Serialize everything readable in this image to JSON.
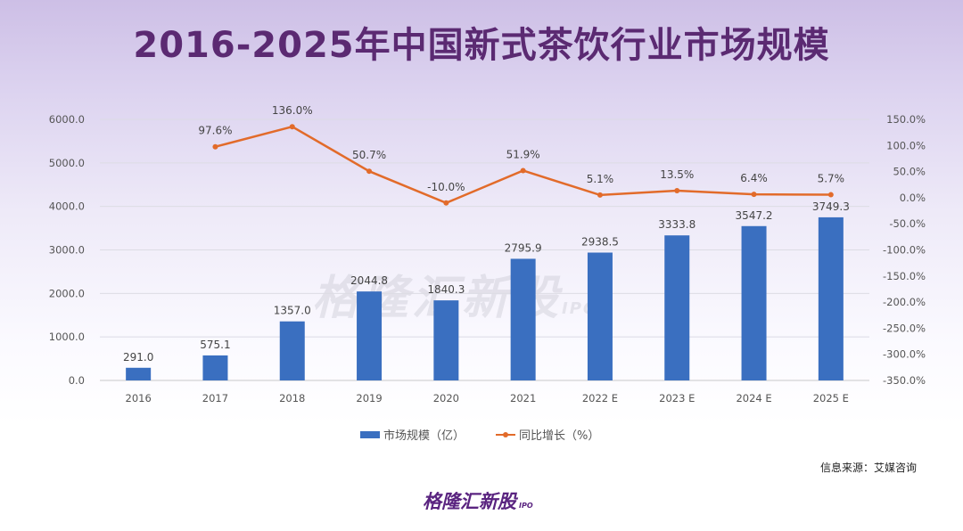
{
  "title": "2016-2025年中国新式茶饮行业市场规模",
  "source": "信息来源：艾媒咨询",
  "logo": {
    "text": "格隆汇新股",
    "sub": "IPO"
  },
  "watermark": {
    "text": "格隆汇新股",
    "sub": "IPO"
  },
  "colors": {
    "bar": "#3a6fc0",
    "line": "#e26b2a",
    "title": "#5b2a72"
  },
  "chart_data": {
    "type": "bar+line",
    "title": "2016-2025年中国新式茶饮行业市场规模",
    "categories": [
      "2016",
      "2017",
      "2018",
      "2019",
      "2020",
      "2021",
      "2022 E",
      "2023 E",
      "2024 E",
      "2025 E"
    ],
    "series": [
      {
        "name": "市场规模（亿）",
        "type": "bar",
        "axis": "left",
        "values": [
          291.0,
          575.1,
          1357.0,
          2044.8,
          1840.3,
          2795.9,
          2938.5,
          3333.8,
          3547.2,
          3749.3
        ],
        "labels": [
          "291.0",
          "575.1",
          "1357.0",
          "2044.8",
          "1840.3",
          "2795.9",
          "2938.5",
          "3333.8",
          "3547.2",
          "3749.3"
        ]
      },
      {
        "name": "同比增长（%）",
        "type": "line",
        "axis": "right",
        "values": [
          null,
          97.6,
          136.0,
          50.7,
          -10.0,
          51.9,
          5.1,
          13.5,
          6.4,
          5.7
        ],
        "labels": [
          "",
          "97.6%",
          "136.0%",
          "50.7%",
          "-10.0%",
          "51.9%",
          "5.1%",
          "13.5%",
          "6.4%",
          "5.7%"
        ]
      }
    ],
    "left_axis": {
      "ylim": [
        0,
        6000
      ],
      "ticks": [
        "0.0",
        "1000.0",
        "2000.0",
        "3000.0",
        "4000.0",
        "5000.0",
        "6000.0"
      ]
    },
    "right_axis": {
      "ylim": [
        -350,
        150
      ],
      "ticks": [
        "-350.0%",
        "-300.0%",
        "-250.0%",
        "-200.0%",
        "-150.0%",
        "-100.0%",
        "-50.0%",
        "0.0%",
        "50.0%",
        "100.0%",
        "150.0%"
      ]
    },
    "legend": "bottom",
    "grid": true
  }
}
